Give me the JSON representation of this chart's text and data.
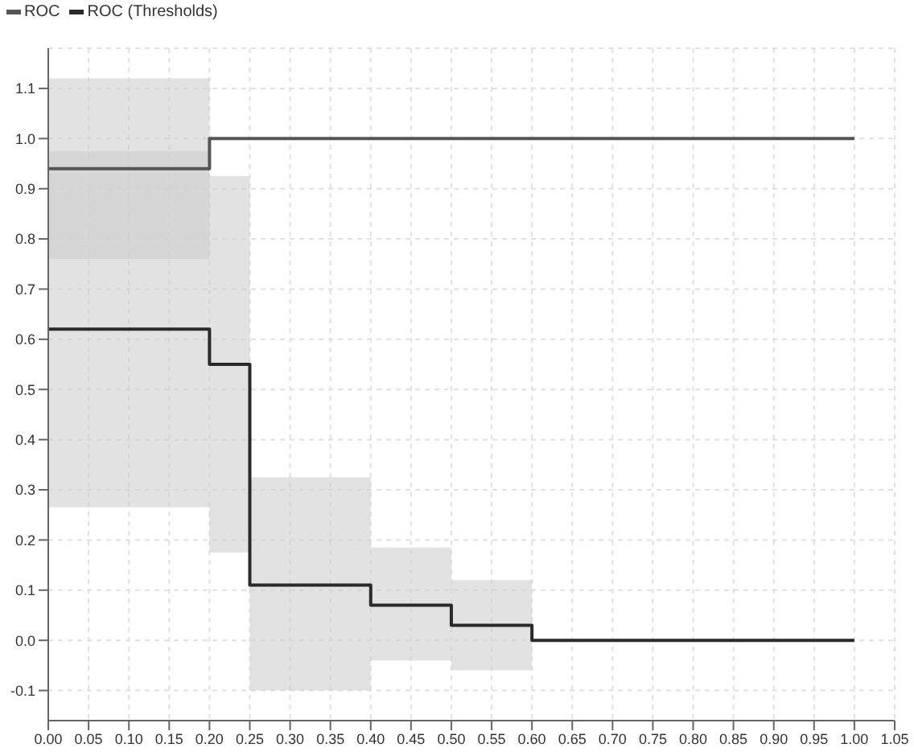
{
  "chart_data": {
    "type": "line",
    "legend": "top left",
    "grid": true,
    "line_style": "solid",
    "marker": "none",
    "xlim": [
      0,
      1.05
    ],
    "ylim": [
      -0.16,
      1.18
    ],
    "xticks": [
      {
        "value": 0,
        "label": "0.00"
      },
      {
        "value": 0.05,
        "label": "0.05"
      },
      {
        "value": 0.1,
        "label": "0.10"
      },
      {
        "value": 0.15,
        "label": "0.15"
      },
      {
        "value": 0.2,
        "label": "0.20"
      },
      {
        "value": 0.25,
        "label": "0.25"
      },
      {
        "value": 0.3,
        "label": "0.30"
      },
      {
        "value": 0.35,
        "label": "0.35"
      },
      {
        "value": 0.4,
        "label": "0.40"
      },
      {
        "value": 0.45,
        "label": "0.45"
      },
      {
        "value": 0.5,
        "label": "0.50"
      },
      {
        "value": 0.55,
        "label": "0.55"
      },
      {
        "value": 0.6,
        "label": "0.60"
      },
      {
        "value": 0.65,
        "label": "0.65"
      },
      {
        "value": 0.7,
        "label": "0.70"
      },
      {
        "value": 0.75,
        "label": "0.75"
      },
      {
        "value": 0.8,
        "label": "0.80"
      },
      {
        "value": 0.85,
        "label": "0.85"
      },
      {
        "value": 0.9,
        "label": "0.90"
      },
      {
        "value": 0.95,
        "label": "0.95"
      },
      {
        "value": 1,
        "label": "1.00"
      },
      {
        "value": 1.05,
        "label": "1.05"
      }
    ],
    "yticks": [
      -0.1,
      {
        "value": 0,
        "label": "0.0"
      },
      0.1,
      0.2,
      0.3,
      0.4,
      0.5,
      0.6,
      0.7,
      0.8,
      0.9,
      {
        "value": 1,
        "label": "1.0"
      },
      1.1
    ],
    "series": [
      {
        "name": "ROC",
        "color": "#555555",
        "x": [
          0,
          0.2,
          0.2,
          1.0
        ],
        "values": [
          0.94,
          0.94,
          1.0,
          1.0
        ],
        "lower": [
          0.76,
          0.76,
          null,
          null
        ],
        "upper": [
          1.12,
          1.12,
          null,
          null
        ]
      },
      {
        "name": "ROC (Thresholds)",
        "color": "#2a2a2a",
        "x": [
          0,
          0.2,
          0.2,
          0.25,
          0.25,
          0.4,
          0.4,
          0.5,
          0.5,
          0.6,
          0.6,
          1.0
        ],
        "values": [
          0.62,
          0.62,
          0.55,
          0.55,
          0.11,
          0.11,
          0.07,
          0.07,
          0.03,
          0.03,
          0,
          0
        ],
        "lower": [
          0.265,
          0.265,
          0.175,
          0.175,
          -0.1,
          -0.1,
          -0.04,
          -0.04,
          -0.06,
          -0.06,
          null,
          null
        ],
        "upper": [
          0.975,
          0.975,
          0.925,
          0.925,
          0.325,
          0.325,
          0.185,
          0.185,
          0.12,
          0.12,
          null,
          null
        ]
      }
    ]
  }
}
